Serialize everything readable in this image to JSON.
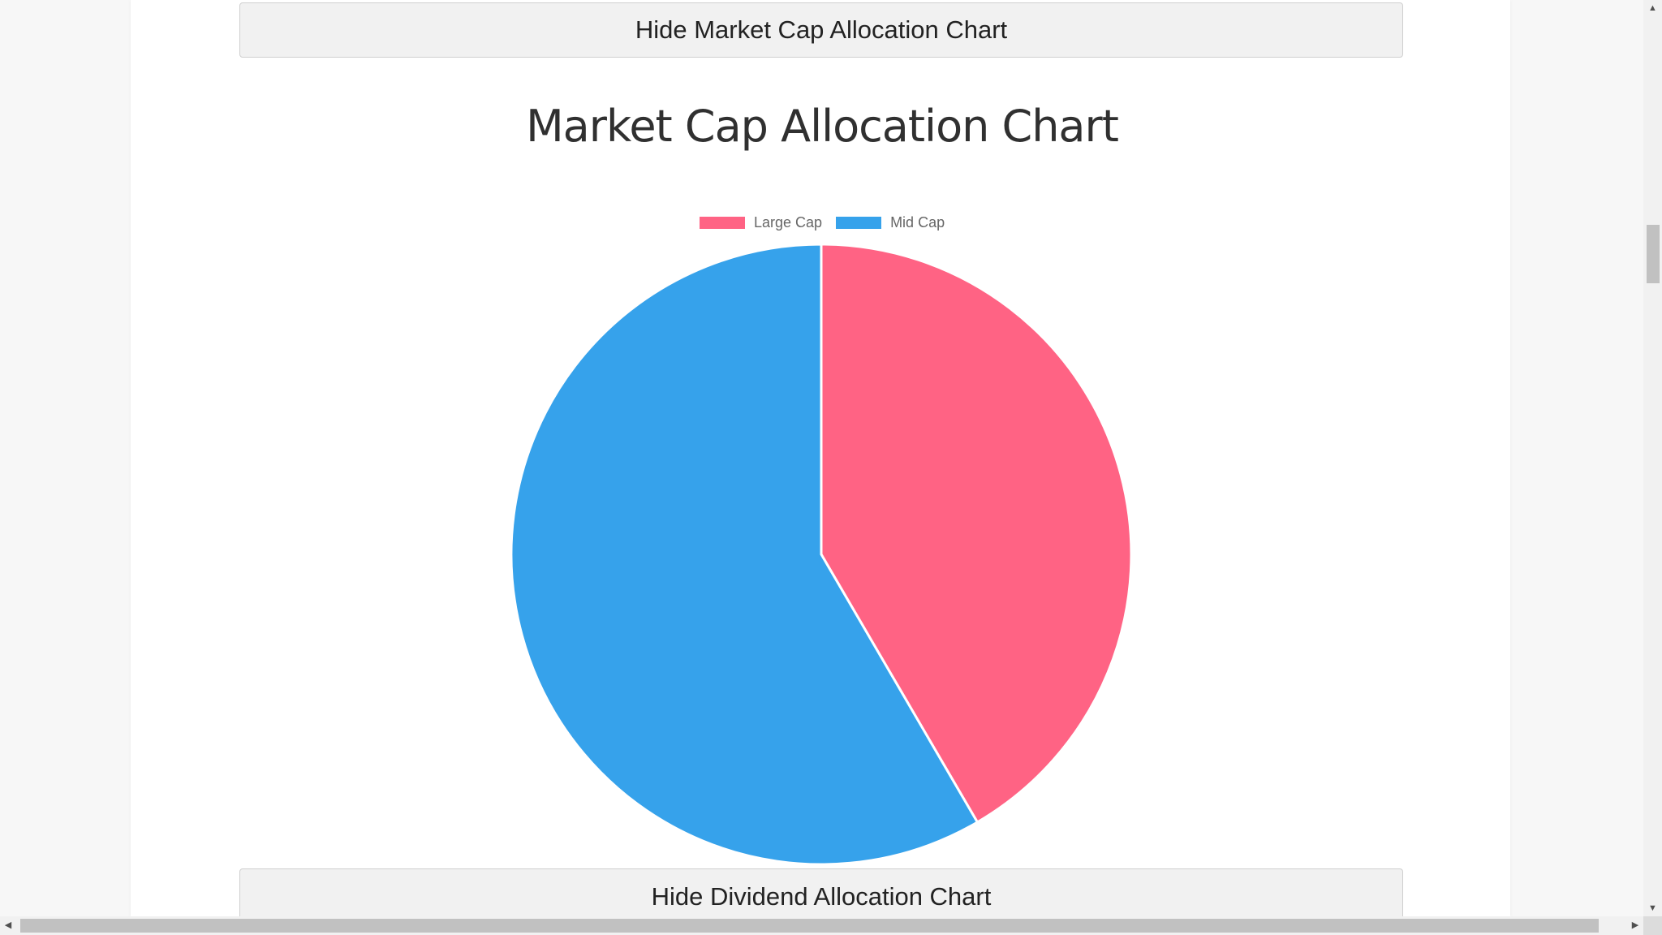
{
  "buttons": {
    "hide_market_cap": "Hide Market Cap Allocation Chart",
    "hide_dividend": "Hide Dividend Allocation Chart"
  },
  "chart_data": {
    "type": "pie",
    "title": "Market Cap Allocation Chart",
    "categories": [
      "Large Cap",
      "Mid Cap"
    ],
    "values": [
      41.6,
      58.4
    ],
    "colors": [
      "#ff6384",
      "#36a2eb"
    ],
    "legend_position": "top"
  },
  "scrollbars": {
    "up_arrow": "▲",
    "down_arrow": "▼",
    "left_arrow": "◀",
    "right_arrow": "▶"
  }
}
